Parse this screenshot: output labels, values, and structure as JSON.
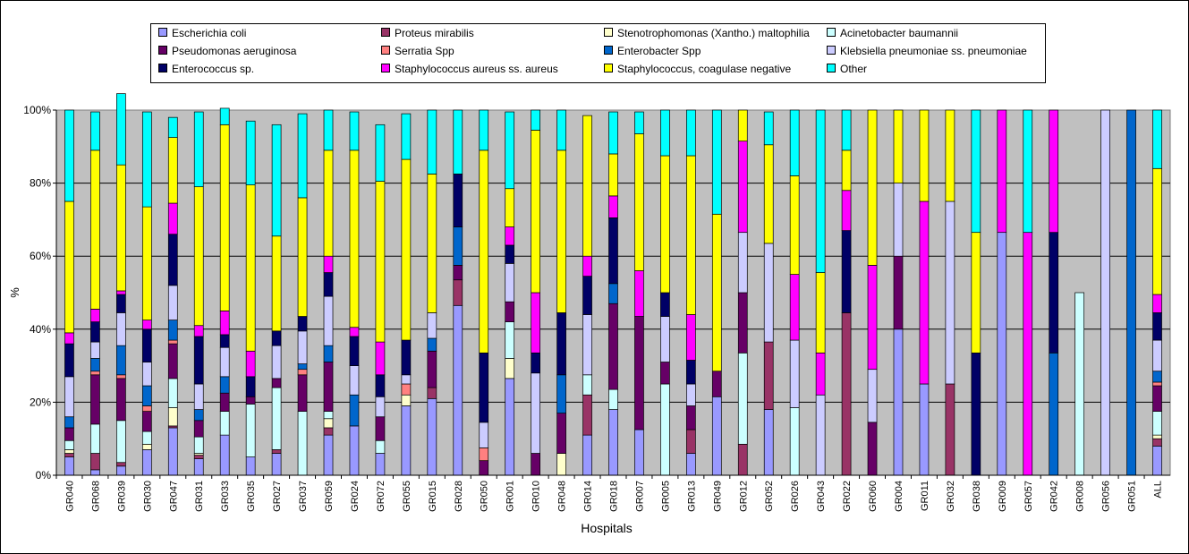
{
  "chart_data": {
    "type": "bar",
    "stacked": "percent",
    "xlabel": "Hospitals",
    "ylabel": "%",
    "ylim": [
      0,
      100
    ],
    "yticks": [
      "0%",
      "20%",
      "40%",
      "60%",
      "80%",
      "100%"
    ],
    "grid": true,
    "legend_position": "top",
    "categories": [
      "GR040",
      "GR068",
      "GR039",
      "GR030",
      "GR047",
      "GR031",
      "GR033",
      "GR035",
      "GR027",
      "GR037",
      "GR059",
      "GR024",
      "GR072",
      "GR055",
      "GR015",
      "GR028",
      "GR050",
      "GR001",
      "GR010",
      "GR048",
      "GR014",
      "GR018",
      "GR007",
      "GR005",
      "GR013",
      "GR049",
      "GR012",
      "GR052",
      "GR026",
      "GR043",
      "GR022",
      "GR060",
      "GR004",
      "GR011",
      "GR032",
      "GR038",
      "GR009",
      "GR057",
      "GR042",
      "GR008",
      "GR056",
      "GR051",
      "ALL"
    ],
    "series": [
      {
        "name": "Escherichia coli",
        "color": "#9999FF",
        "values": [
          5,
          1.5,
          2.5,
          7,
          13,
          4.5,
          11,
          5,
          6,
          0,
          11,
          13.5,
          6,
          19,
          21,
          46.5,
          0,
          26.5,
          0,
          0,
          11,
          18,
          12.5,
          0,
          6,
          21.5,
          0,
          18,
          0,
          0,
          0,
          0,
          40,
          25,
          0,
          0,
          66.5,
          0,
          0,
          0,
          0,
          0,
          8
        ]
      },
      {
        "name": "Proteus mirabilis",
        "color": "#993366",
        "values": [
          1,
          4.5,
          1,
          0,
          0.5,
          1,
          0,
          0,
          1,
          0,
          2,
          0,
          0,
          0,
          3,
          7,
          0,
          0,
          0,
          0,
          11,
          0,
          0,
          0,
          6.5,
          0,
          8.5,
          18.5,
          0,
          0,
          44.5,
          0,
          0,
          0,
          25,
          0,
          0,
          0,
          0,
          0,
          0,
          0,
          2
        ]
      },
      {
        "name": "Stenotrophomonas (Xantho.) maltophilia",
        "color": "#FFFFCC",
        "values": [
          1,
          0,
          0,
          1.5,
          5,
          0.5,
          0,
          0,
          0,
          0,
          2.5,
          0,
          0,
          3,
          0,
          0,
          0,
          5.5,
          0,
          6,
          0,
          0,
          0,
          0,
          0,
          0,
          0,
          0,
          0,
          0,
          0,
          0,
          0,
          0,
          0,
          0,
          0,
          0,
          0,
          0,
          0,
          0,
          1
        ]
      },
      {
        "name": "Acinetobacter baumannii",
        "color": "#CCFFFF",
        "values": [
          2.5,
          8,
          11.5,
          3.5,
          8,
          4.5,
          6.5,
          14.5,
          17,
          17.5,
          2,
          0,
          3.5,
          0,
          0,
          0,
          0,
          10,
          0,
          0,
          5.5,
          5.5,
          0,
          25,
          0,
          0,
          25,
          0,
          18.5,
          0,
          0,
          0,
          0,
          0,
          0,
          0,
          0,
          0,
          0,
          50,
          0,
          0,
          6.5
        ]
      },
      {
        "name": "Pseudomonas aeruginosa",
        "color": "#660066",
        "values": [
          3.5,
          13.5,
          11.5,
          5.5,
          9.5,
          4.5,
          5,
          2,
          2.5,
          10,
          13.5,
          0,
          6.5,
          0,
          10,
          4,
          4,
          5.5,
          6,
          11,
          0,
          23.5,
          31,
          6,
          6.5,
          7,
          16.5,
          0,
          0,
          0,
          0,
          14.5,
          20,
          0,
          0,
          0,
          0,
          0,
          0,
          0,
          0,
          0,
          7
        ]
      },
      {
        "name": "Serratia Spp",
        "color": "#FF8080",
        "values": [
          0,
          1,
          1,
          1.5,
          1,
          0,
          0,
          0,
          0,
          1.5,
          0,
          0,
          0,
          3,
          0,
          0,
          3.5,
          0,
          0,
          0,
          0,
          0,
          0,
          0,
          0,
          0,
          0,
          0,
          0,
          0,
          0,
          0,
          0,
          0,
          0,
          0,
          0,
          0,
          0,
          0,
          0,
          0,
          1
        ]
      },
      {
        "name": "Enterobacter Spp",
        "color": "#0066CC",
        "values": [
          3,
          3.5,
          8,
          5.5,
          5.5,
          3,
          4.5,
          0,
          0,
          1.5,
          4.5,
          8.5,
          0,
          0,
          3.5,
          10.5,
          0,
          0,
          0,
          10.5,
          0,
          5.5,
          0,
          0,
          0,
          0,
          0,
          0,
          0,
          0,
          0,
          0,
          0,
          0,
          0,
          0,
          0,
          0,
          33.5,
          0,
          0,
          100,
          3
        ]
      },
      {
        "name": "Klebsiella pneumoniae ss. pneumoniae",
        "color": "#CCCCFF",
        "values": [
          11,
          4.5,
          9,
          6.5,
          9.5,
          7,
          8,
          0,
          9,
          9,
          13.5,
          8,
          5.5,
          2.5,
          7,
          0,
          7,
          10.5,
          22,
          0,
          16.5,
          0,
          0,
          12.5,
          6,
          0,
          16.5,
          27,
          18.5,
          22,
          0,
          14.5,
          20,
          0,
          50,
          0,
          0,
          0,
          0,
          0,
          100,
          0,
          8.5
        ]
      },
      {
        "name": "Enterococcus sp.",
        "color": "#000066",
        "values": [
          9,
          5.5,
          5,
          9,
          14,
          13,
          3.5,
          5.5,
          4,
          4,
          6.5,
          8,
          6,
          9.5,
          0,
          14.5,
          19,
          5,
          5.5,
          17,
          10.5,
          18,
          0,
          6.5,
          6.5,
          0,
          0,
          0,
          0,
          0,
          22.5,
          0,
          0,
          0,
          0,
          33.5,
          0,
          0,
          33,
          0,
          0,
          0,
          7.5
        ]
      },
      {
        "name": "Staphylococcus aureus ss. aureus",
        "color": "#FF00FF",
        "values": [
          3,
          3.5,
          1,
          2.5,
          8.5,
          3,
          6.5,
          7,
          0,
          0,
          4.5,
          2.5,
          9,
          0,
          0,
          0,
          0,
          5,
          16.5,
          0,
          5.5,
          6,
          12.5,
          0,
          12.5,
          0,
          25,
          0,
          18,
          11.5,
          11,
          28.5,
          0,
          50,
          0,
          0,
          33.5,
          66.5,
          33.5,
          0,
          0,
          0,
          5
        ]
      },
      {
        "name": "Staphylococcus, coagulase negative",
        "color": "#FFFF00",
        "values": [
          36,
          43.5,
          34.5,
          31,
          18,
          38,
          51,
          45.5,
          26,
          32.5,
          29,
          48.5,
          44,
          49.5,
          38,
          0,
          55.5,
          10.5,
          44.5,
          44.5,
          38.5,
          11.5,
          37.5,
          37.5,
          43.5,
          43,
          8.5,
          27,
          27,
          22,
          11,
          42.5,
          20,
          25,
          25,
          33,
          0,
          0,
          0,
          0,
          0,
          0,
          34.5
        ]
      },
      {
        "name": "Other",
        "color": "#00FFFF",
        "values": [
          25,
          10.5,
          19.5,
          26,
          5.5,
          20.5,
          4.5,
          17.5,
          30.5,
          23,
          11,
          10.5,
          15.5,
          12.5,
          17.5,
          17.5,
          11,
          21,
          5.5,
          11,
          0,
          11.5,
          6,
          12.5,
          12.5,
          28.5,
          0,
          9,
          18,
          44.5,
          11,
          0,
          0,
          0,
          0,
          33.5,
          0,
          33.5,
          0,
          0,
          0,
          0,
          16
        ]
      }
    ]
  }
}
